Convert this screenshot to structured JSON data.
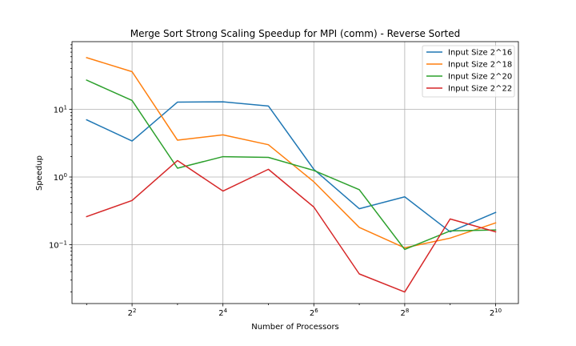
{
  "chart_data": {
    "type": "line",
    "title": "Merge Sort Strong Scaling Speedup for MPI (comm) - Reverse Sorted",
    "xlabel": "Number of Processors",
    "ylabel": "Speedup",
    "x_scale": "log2",
    "y_scale": "log10",
    "xlim": [
      1.6,
      1450
    ],
    "ylim": [
      0.0135,
      100
    ],
    "grid": true,
    "legend_position": "top-right",
    "x": [
      2,
      4,
      8,
      16,
      32,
      64,
      128,
      256,
      512,
      1024
    ],
    "x_ticks": [
      {
        "value": 4,
        "base": "2",
        "exp": "2"
      },
      {
        "value": 16,
        "base": "2",
        "exp": "4"
      },
      {
        "value": 64,
        "base": "2",
        "exp": "6"
      },
      {
        "value": 256,
        "base": "2",
        "exp": "8"
      },
      {
        "value": 1024,
        "base": "2",
        "exp": "10"
      }
    ],
    "y_ticks": [
      {
        "value": 0.1,
        "base": "10",
        "exp": "−1"
      },
      {
        "value": 1,
        "base": "10",
        "exp": "0"
      },
      {
        "value": 10,
        "base": "10",
        "exp": "1"
      }
    ],
    "series": [
      {
        "name": "Input Size 2^16",
        "color": "#1f77b4",
        "values": [
          7.0,
          3.4,
          12.8,
          12.9,
          11.2,
          1.3,
          0.34,
          0.51,
          0.155,
          0.3
        ]
      },
      {
        "name": "Input Size 2^18",
        "color": "#ff7f0e",
        "values": [
          58.0,
          36.0,
          3.5,
          4.2,
          3.0,
          0.85,
          0.18,
          0.09,
          0.125,
          0.21
        ]
      },
      {
        "name": "Input Size 2^20",
        "color": "#2ca02c",
        "values": [
          27.0,
          13.5,
          1.35,
          2.0,
          1.95,
          1.25,
          0.65,
          0.085,
          0.16,
          0.165
        ]
      },
      {
        "name": "Input Size 2^22",
        "color": "#d62728",
        "values": [
          0.26,
          0.45,
          1.75,
          0.62,
          1.3,
          0.36,
          0.037,
          0.02,
          0.24,
          0.155
        ]
      }
    ]
  }
}
